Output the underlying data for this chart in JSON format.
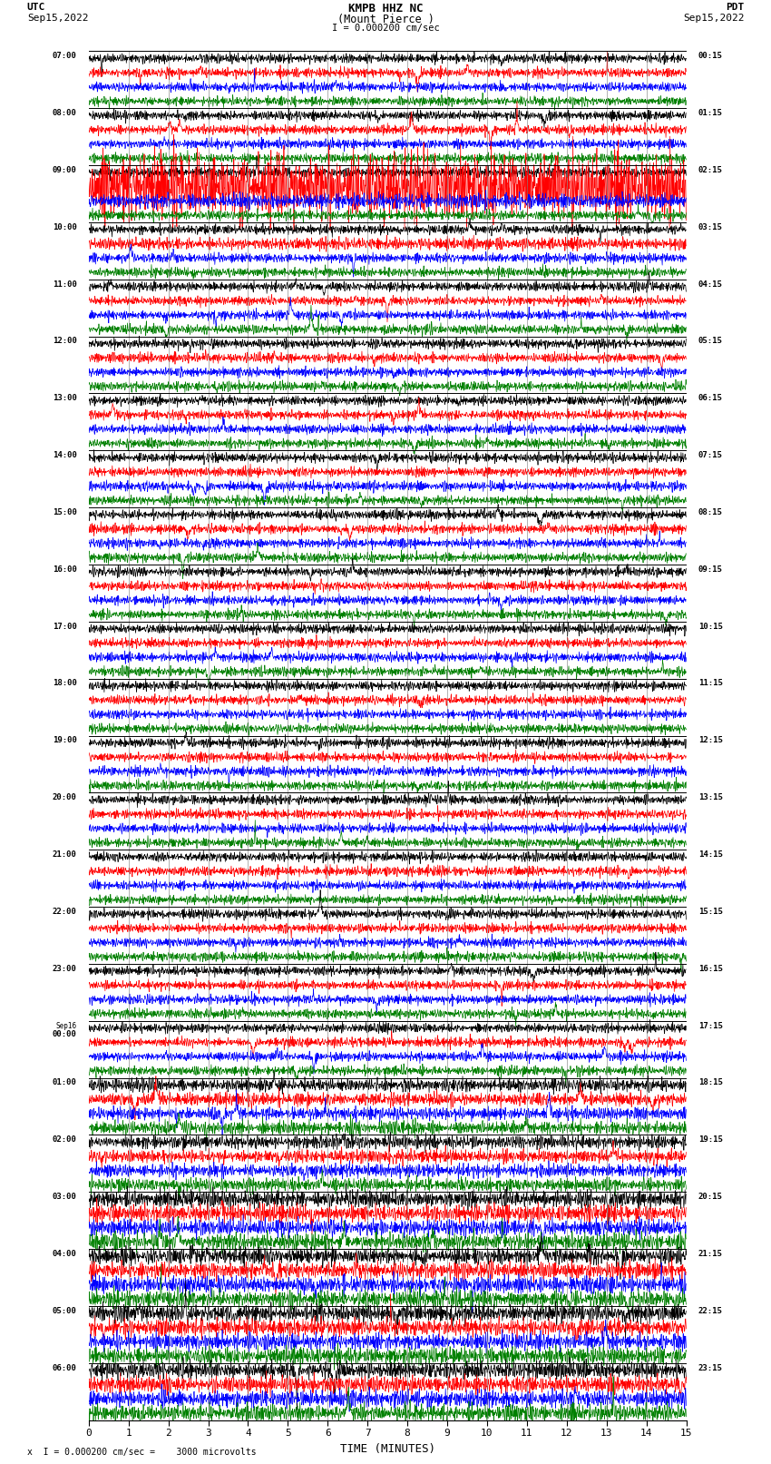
{
  "title_line1": "KMPB HHZ NC",
  "title_line2": "(Mount Pierce )",
  "scale_label": "= 0.000200 cm/sec",
  "footer_label": "x  I = 0.000200 cm/sec =    3000 microvolts",
  "utc_label": "UTC",
  "date_left": "Sep15,2022",
  "pdt_label": "PDT",
  "date_right": "Sep15,2022",
  "xlabel": "TIME (MINUTES)",
  "xmin": 0,
  "xmax": 15,
  "background_color": "#ffffff",
  "trace_colors": [
    "black",
    "red",
    "blue",
    "green"
  ],
  "left_times": [
    "07:00",
    "08:00",
    "09:00",
    "10:00",
    "11:00",
    "12:00",
    "13:00",
    "14:00",
    "15:00",
    "16:00",
    "17:00",
    "18:00",
    "19:00",
    "20:00",
    "21:00",
    "22:00",
    "23:00",
    "00:00",
    "01:00",
    "02:00",
    "03:00",
    "04:00",
    "05:00",
    "06:00"
  ],
  "right_times": [
    "00:15",
    "01:15",
    "02:15",
    "03:15",
    "04:15",
    "05:15",
    "06:15",
    "07:15",
    "08:15",
    "09:15",
    "10:15",
    "11:15",
    "12:15",
    "13:15",
    "14:15",
    "15:15",
    "16:15",
    "17:15",
    "18:15",
    "19:15",
    "20:15",
    "21:15",
    "22:15",
    "23:15"
  ],
  "n_rows": 24,
  "traces_per_row": 4,
  "fig_width": 8.5,
  "fig_height": 16.13,
  "dpi": 100
}
